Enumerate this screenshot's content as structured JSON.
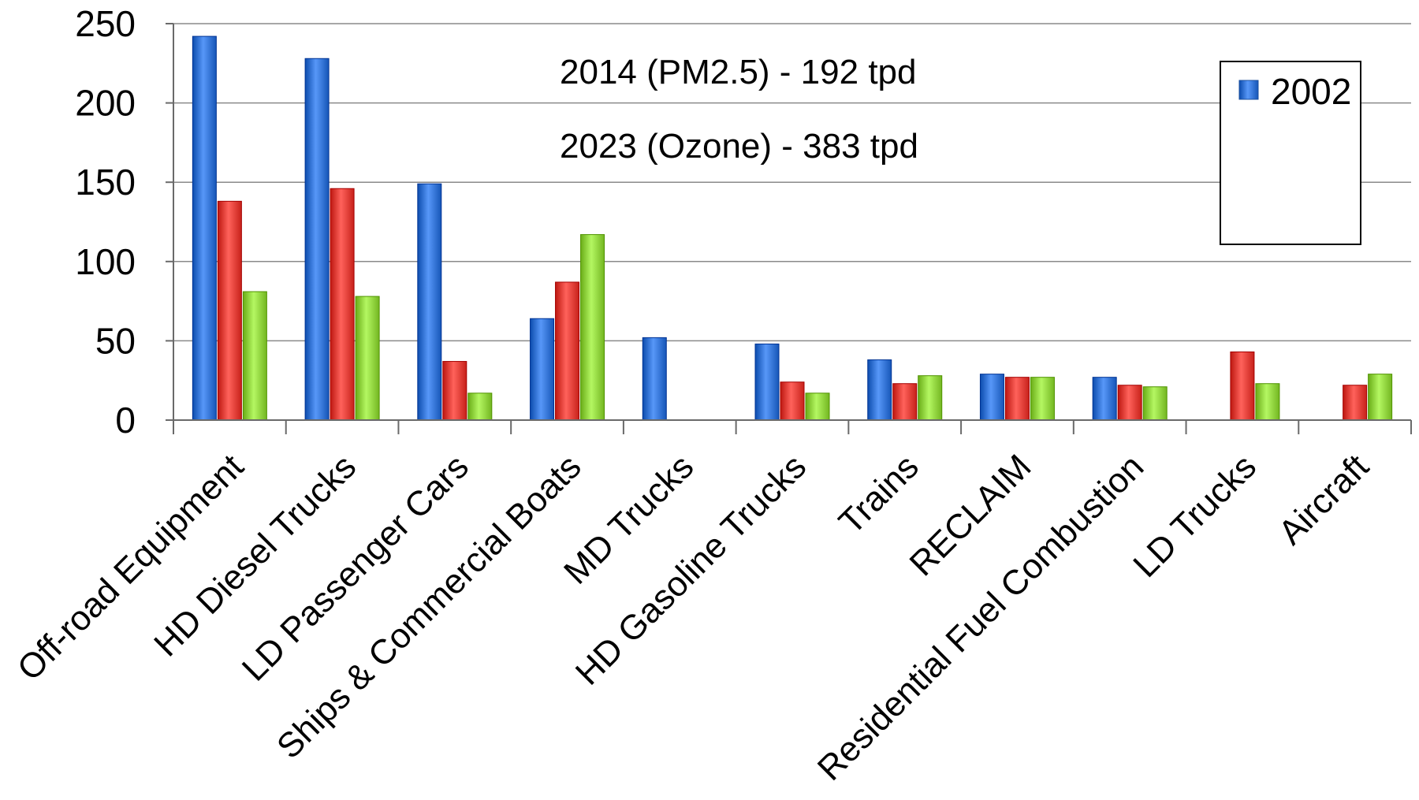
{
  "chart_data": {
    "type": "bar",
    "categories": [
      "Off-road Equipment",
      "HD Diesel Trucks",
      "LD Passenger Cars",
      "Ships & Commercial Boats",
      "MD Trucks",
      "HD Gasoline Trucks",
      "Trains",
      "RECLAIM",
      "Residential Fuel Combustion",
      "LD Trucks",
      "Aircraft"
    ],
    "series": [
      {
        "name": "2002",
        "color": "#2f6fd0",
        "values": [
          242,
          228,
          149,
          64,
          52,
          48,
          38,
          29,
          27,
          null,
          null
        ]
      },
      {
        "color": "#e03a33",
        "values": [
          138,
          146,
          37,
          87,
          null,
          24,
          23,
          27,
          22,
          43,
          22
        ]
      },
      {
        "color": "#8ccf3a",
        "values": [
          81,
          78,
          17,
          117,
          null,
          17,
          28,
          27,
          21,
          23,
          29
        ]
      }
    ],
    "annotations": [
      "2014 (PM2.5) - 192 tpd",
      "2023 (Ozone) - 383 tpd"
    ],
    "ylim": [
      0,
      250
    ],
    "yticks": [
      0,
      50,
      100,
      150,
      200,
      250
    ],
    "grid": true,
    "legend_position": "top-right",
    "title": "",
    "xlabel": "",
    "ylabel": ""
  }
}
